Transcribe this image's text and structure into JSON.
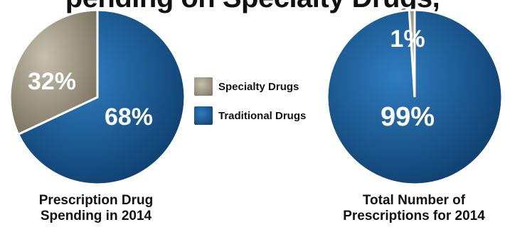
{
  "title_fragment": "pending on Specialty Drugs,",
  "colors": {
    "specialty_light": "#c8c0ae",
    "specialty_dark": "#7a725f",
    "traditional_light": "#2f7cbf",
    "traditional_dark": "#0d3d6b"
  },
  "legend": [
    {
      "label": "Specialty Drugs",
      "key": "specialty"
    },
    {
      "label": "Traditional Drugs",
      "key": "traditional"
    }
  ],
  "chart_data": [
    {
      "type": "pie",
      "caption_line1": "Prescription Drug",
      "caption_line2": "Spending in 2014",
      "slices": [
        {
          "name": "Specialty Drugs",
          "value": 32,
          "label": "32%"
        },
        {
          "name": "Traditional Drugs",
          "value": 68,
          "label": "68%"
        }
      ]
    },
    {
      "type": "pie",
      "caption_line1": "Total Number of",
      "caption_line2": "Prescriptions for 2014",
      "slices": [
        {
          "name": "Specialty Drugs",
          "value": 1,
          "label": "1%"
        },
        {
          "name": "Traditional Drugs",
          "value": 99,
          "label": "99%"
        }
      ]
    }
  ]
}
